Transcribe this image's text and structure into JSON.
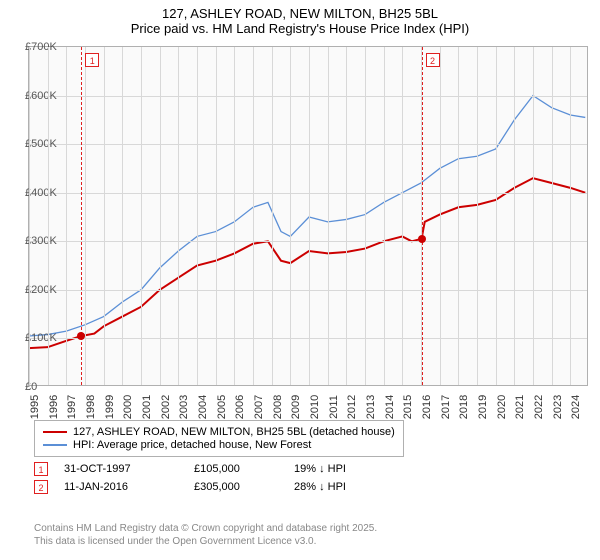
{
  "title": {
    "line1": "127, ASHLEY ROAD, NEW MILTON, BH25 5BL",
    "line2": "Price paid vs. HM Land Registry's House Price Index (HPI)"
  },
  "chart": {
    "type": "line",
    "background_color": "#fafafa",
    "grid_color": "#d8d8d8",
    "border_color": "#b0b0b0",
    "x_years": [
      1995,
      1996,
      1997,
      1998,
      1999,
      2000,
      2001,
      2002,
      2003,
      2004,
      2005,
      2006,
      2007,
      2008,
      2009,
      2010,
      2011,
      2012,
      2013,
      2014,
      2015,
      2016,
      2017,
      2018,
      2019,
      2020,
      2021,
      2022,
      2023,
      2024
    ],
    "xlim": [
      1995,
      2025
    ],
    "ylim": [
      0,
      700000
    ],
    "ytick_step": 100000,
    "ytick_labels": [
      "£0",
      "£100K",
      "£200K",
      "£300K",
      "£400K",
      "£500K",
      "£600K",
      "£700K"
    ],
    "series": [
      {
        "name": "property",
        "label": "127, ASHLEY ROAD, NEW MILTON, BH25 5BL (detached house)",
        "color": "#cc0000",
        "line_width": 2,
        "data": [
          [
            1995,
            80000
          ],
          [
            1996,
            82000
          ],
          [
            1997,
            95000
          ],
          [
            1997.8,
            105000
          ],
          [
            1998.5,
            110000
          ],
          [
            1999,
            125000
          ],
          [
            2000,
            145000
          ],
          [
            2001,
            165000
          ],
          [
            2002,
            200000
          ],
          [
            2003,
            225000
          ],
          [
            2004,
            250000
          ],
          [
            2005,
            260000
          ],
          [
            2006,
            275000
          ],
          [
            2007,
            295000
          ],
          [
            2007.8,
            300000
          ],
          [
            2008.5,
            260000
          ],
          [
            2009,
            255000
          ],
          [
            2010,
            280000
          ],
          [
            2011,
            275000
          ],
          [
            2012,
            278000
          ],
          [
            2013,
            285000
          ],
          [
            2014,
            300000
          ],
          [
            2015,
            310000
          ],
          [
            2015.5,
            300000
          ],
          [
            2016.03,
            305000
          ],
          [
            2016.2,
            340000
          ],
          [
            2017,
            355000
          ],
          [
            2018,
            370000
          ],
          [
            2019,
            375000
          ],
          [
            2020,
            385000
          ],
          [
            2021,
            410000
          ],
          [
            2022,
            430000
          ],
          [
            2023,
            420000
          ],
          [
            2024,
            410000
          ],
          [
            2024.8,
            400000
          ]
        ]
      },
      {
        "name": "hpi",
        "label": "HPI: Average price, detached house, New Forest",
        "color": "#5b8fd6",
        "line_width": 1.3,
        "data": [
          [
            1995,
            105000
          ],
          [
            1996,
            108000
          ],
          [
            1997,
            115000
          ],
          [
            1998,
            128000
          ],
          [
            1999,
            145000
          ],
          [
            2000,
            175000
          ],
          [
            2001,
            200000
          ],
          [
            2002,
            245000
          ],
          [
            2003,
            280000
          ],
          [
            2004,
            310000
          ],
          [
            2005,
            320000
          ],
          [
            2006,
            340000
          ],
          [
            2007,
            370000
          ],
          [
            2007.8,
            380000
          ],
          [
            2008.5,
            320000
          ],
          [
            2009,
            310000
          ],
          [
            2010,
            350000
          ],
          [
            2011,
            340000
          ],
          [
            2012,
            345000
          ],
          [
            2013,
            355000
          ],
          [
            2014,
            380000
          ],
          [
            2015,
            400000
          ],
          [
            2016,
            420000
          ],
          [
            2017,
            450000
          ],
          [
            2018,
            470000
          ],
          [
            2019,
            475000
          ],
          [
            2020,
            490000
          ],
          [
            2021,
            550000
          ],
          [
            2022,
            600000
          ],
          [
            2023,
            575000
          ],
          [
            2024,
            560000
          ],
          [
            2024.8,
            555000
          ]
        ]
      }
    ],
    "markers": [
      {
        "n": "1",
        "x": 1997.8,
        "point_y": 105000
      },
      {
        "n": "2",
        "x": 2016.03,
        "point_y": 305000
      }
    ]
  },
  "sales": [
    {
      "n": "1",
      "date": "31-OCT-1997",
      "price": "£105,000",
      "diff": "19% ↓ HPI"
    },
    {
      "n": "2",
      "date": "11-JAN-2016",
      "price": "£305,000",
      "diff": "28% ↓ HPI"
    }
  ],
  "attribution": {
    "line1": "Contains HM Land Registry data © Crown copyright and database right 2025.",
    "line2": "This data is licensed under the Open Government Licence v3.0."
  }
}
